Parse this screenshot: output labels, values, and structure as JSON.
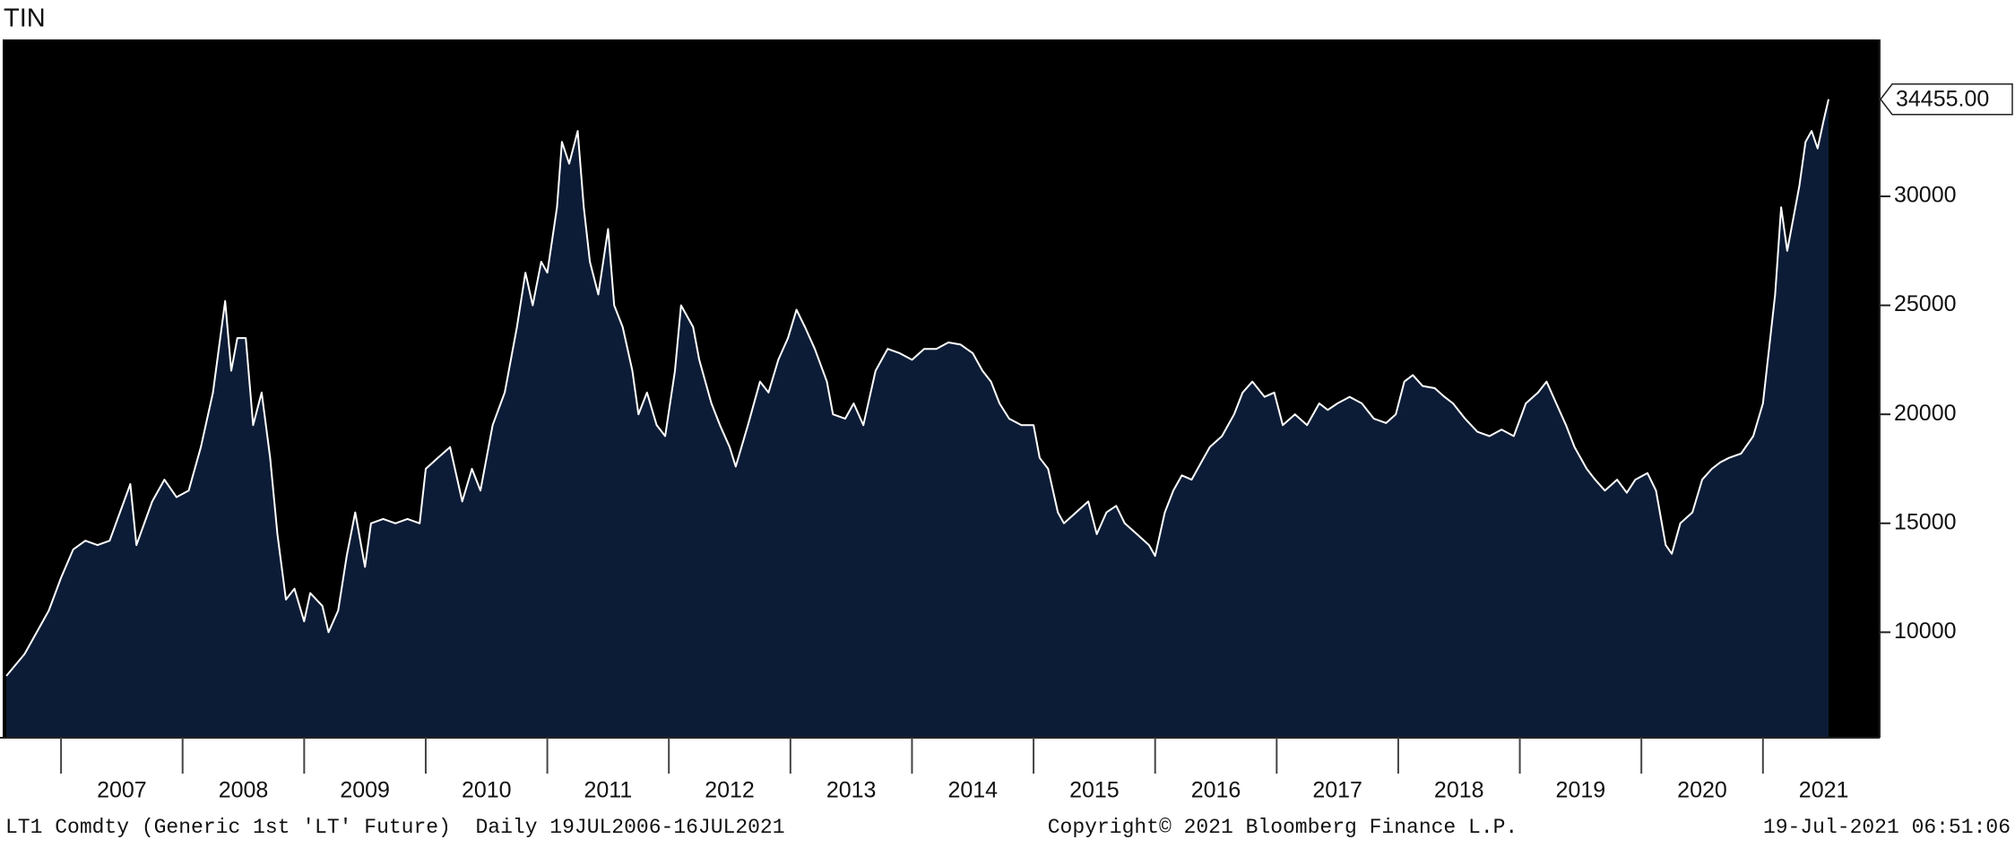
{
  "chart_data": {
    "type": "area",
    "title": "TIN",
    "x": [
      2006.55,
      2006.7,
      2006.8,
      2006.9,
      2007.0,
      2007.1,
      2007.2,
      2007.3,
      2007.4,
      2007.57,
      2007.62,
      2007.75,
      2007.85,
      2007.95,
      2008.05,
      2008.15,
      2008.25,
      2008.35,
      2008.4,
      2008.45,
      2008.52,
      2008.58,
      2008.65,
      2008.72,
      2008.78,
      2008.85,
      2008.92,
      2009.0,
      2009.05,
      2009.15,
      2009.2,
      2009.28,
      2009.35,
      2009.42,
      2009.5,
      2009.55,
      2009.65,
      2009.75,
      2009.85,
      2009.95,
      2010.0,
      2010.1,
      2010.2,
      2010.3,
      2010.38,
      2010.45,
      2010.55,
      2010.65,
      2010.75,
      2010.82,
      2010.88,
      2010.95,
      2011.0,
      2011.08,
      2011.12,
      2011.18,
      2011.25,
      2011.3,
      2011.35,
      2011.42,
      2011.5,
      2011.55,
      2011.62,
      2011.7,
      2011.75,
      2011.82,
      2011.9,
      2011.97,
      2012.05,
      2012.1,
      2012.2,
      2012.25,
      2012.35,
      2012.42,
      2012.5,
      2012.55,
      2012.65,
      2012.75,
      2012.82,
      2012.9,
      2012.98,
      2013.05,
      2013.12,
      2013.2,
      2013.3,
      2013.35,
      2013.45,
      2013.52,
      2013.6,
      2013.7,
      2013.8,
      2013.9,
      2014.0,
      2014.1,
      2014.2,
      2014.3,
      2014.4,
      2014.5,
      2014.58,
      2014.65,
      2014.72,
      2014.8,
      2014.9,
      2015.0,
      2015.05,
      2015.12,
      2015.2,
      2015.25,
      2015.35,
      2015.45,
      2015.52,
      2015.6,
      2015.68,
      2015.75,
      2015.85,
      2015.95,
      2016.0,
      2016.08,
      2016.15,
      2016.22,
      2016.3,
      2016.38,
      2016.45,
      2016.55,
      2016.65,
      2016.72,
      2016.8,
      2016.9,
      2016.98,
      2017.05,
      2017.15,
      2017.25,
      2017.35,
      2017.42,
      2017.5,
      2017.6,
      2017.7,
      2017.8,
      2017.9,
      2017.98,
      2018.05,
      2018.12,
      2018.2,
      2018.3,
      2018.38,
      2018.45,
      2018.55,
      2018.65,
      2018.75,
      2018.85,
      2018.95,
      2019.05,
      2019.15,
      2019.22,
      2019.3,
      2019.38,
      2019.45,
      2019.55,
      2019.62,
      2019.7,
      2019.8,
      2019.88,
      2019.95,
      2020.05,
      2020.12,
      2020.2,
      2020.25,
      2020.32,
      2020.42,
      2020.5,
      2020.58,
      2020.65,
      2020.72,
      2020.82,
      2020.92,
      2021.0,
      2021.05,
      2021.1,
      2021.15,
      2021.2,
      2021.25,
      2021.3,
      2021.35,
      2021.4,
      2021.45,
      2021.5,
      2021.54
    ],
    "values": [
      8000,
      9000,
      10000,
      11000,
      12500,
      13800,
      14200,
      14000,
      14200,
      16800,
      14000,
      16000,
      17000,
      16200,
      16500,
      18500,
      21000,
      25200,
      22000,
      23500,
      23500,
      19500,
      21000,
      18000,
      14500,
      11500,
      12000,
      10500,
      11800,
      11200,
      10000,
      11000,
      13500,
      15500,
      13000,
      15000,
      15200,
      15000,
      15200,
      15000,
      17500,
      18000,
      18500,
      16000,
      17500,
      16500,
      19500,
      21000,
      24000,
      26500,
      25000,
      27000,
      26500,
      29500,
      32500,
      31500,
      33000,
      29500,
      27000,
      25500,
      28500,
      25000,
      24000,
      22000,
      20000,
      21000,
      19500,
      19000,
      22000,
      25000,
      24000,
      22500,
      20500,
      19500,
      18500,
      17600,
      19500,
      21500,
      21000,
      22500,
      23500,
      24800,
      24000,
      23000,
      21500,
      20000,
      19800,
      20500,
      19500,
      22000,
      23000,
      22800,
      22500,
      23000,
      23000,
      23300,
      23200,
      22800,
      22000,
      21500,
      20500,
      19800,
      19500,
      19500,
      18000,
      17500,
      15500,
      15000,
      15500,
      16000,
      14500,
      15500,
      15800,
      15000,
      14500,
      14000,
      13500,
      15500,
      16500,
      17200,
      17000,
      17800,
      18500,
      19000,
      20000,
      21000,
      21500,
      20800,
      21000,
      19500,
      20000,
      19500,
      20500,
      20200,
      20500,
      20800,
      20500,
      19800,
      19600,
      20000,
      21500,
      21800,
      21300,
      21200,
      20800,
      20500,
      19800,
      19200,
      19000,
      19300,
      19000,
      20500,
      21000,
      21500,
      20500,
      19500,
      18500,
      17500,
      17000,
      16500,
      17000,
      16400,
      17000,
      17300,
      16500,
      14000,
      13600,
      15000,
      15500,
      17000,
      17500,
      17800,
      18000,
      18200,
      19000,
      20500,
      23000,
      25500,
      29500,
      27500,
      29000,
      30500,
      32500,
      33000,
      32200,
      33500,
      34455
    ],
    "color": "#0d1c36",
    "line_color": "#ffffff",
    "background": "#000000",
    "xlim": [
      2006.52,
      2021.96
    ],
    "xticks": [
      {
        "value": 2007,
        "label": "2007"
      },
      {
        "value": 2008,
        "label": "2008"
      },
      {
        "value": 2009,
        "label": "2009"
      },
      {
        "value": 2010,
        "label": "2010"
      },
      {
        "value": 2011,
        "label": "2011"
      },
      {
        "value": 2012,
        "label": "2012"
      },
      {
        "value": 2013,
        "label": "2013"
      },
      {
        "value": 2014,
        "label": "2014"
      },
      {
        "value": 2015,
        "label": "2015"
      },
      {
        "value": 2016,
        "label": "2016"
      },
      {
        "value": 2017,
        "label": "2017"
      },
      {
        "value": 2018,
        "label": "2018"
      },
      {
        "value": 2019,
        "label": "2019"
      },
      {
        "value": 2020,
        "label": "2020"
      },
      {
        "value": 2021,
        "label": "2021"
      }
    ],
    "ylim": [
      5160,
      37200
    ],
    "yticks": [
      10000,
      15000,
      20000,
      25000,
      30000
    ],
    "annotations": [
      {
        "x": 2021.54,
        "value": 34455,
        "label": "34455.00"
      }
    ],
    "source": "LT1 Comdty (Generic 1st 'LT' Future)  Daily 19JUL2006-16JUL2021",
    "copyright": "Copyright© 2021 Bloomberg Finance L.P.",
    "timestamp": "19-Jul-2021 06:51:06"
  }
}
